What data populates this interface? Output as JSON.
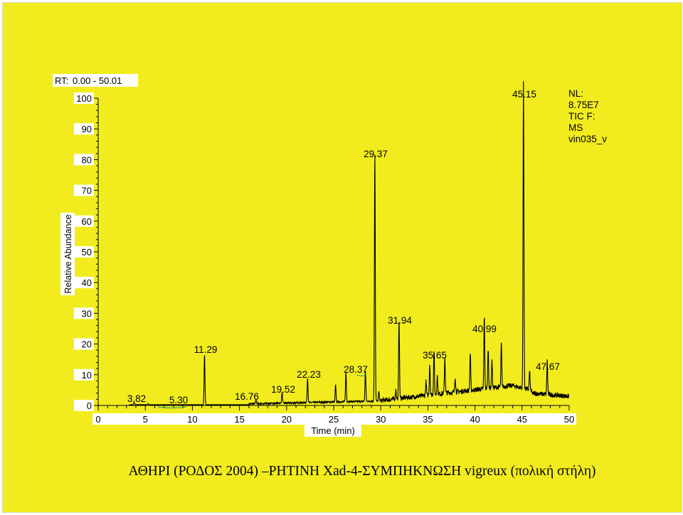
{
  "chart_data": {
    "type": "line",
    "rt_label": "RT:",
    "rt_range": "0.00 - 50.01",
    "ylabel": "Relative Abundance",
    "xlabel": "Time (min)",
    "xlim": [
      0,
      50
    ],
    "ylim": [
      0,
      100
    ],
    "x_ticks": [
      "0",
      "5",
      "10",
      "15",
      "20",
      "25",
      "30",
      "35",
      "40",
      "45",
      "50"
    ],
    "y_ticks": [
      "0",
      "10",
      "20",
      "30",
      "40",
      "50",
      "60",
      "70",
      "80",
      "90",
      "100"
    ],
    "info_lines": [
      "NL:",
      "8.75E7",
      "TIC F:",
      "MS",
      "vin035_v"
    ],
    "peaks": [
      {
        "rt": 3.82,
        "height": 0.8,
        "label": "3.82"
      },
      {
        "rt": 5.3,
        "height": 0.4,
        "label": "5.30"
      },
      {
        "rt": 11.29,
        "height": 16.5,
        "label": "11.29"
      },
      {
        "rt": 16.76,
        "height": 1.2,
        "label": "16.76"
      },
      {
        "rt": 19.52,
        "height": 3.5,
        "label": "19.52"
      },
      {
        "rt": 22.23,
        "height": 8.0,
        "label": "22.23"
      },
      {
        "rt": 28.37,
        "height": 10.0,
        "label": "28.37"
      },
      {
        "rt": 29.37,
        "height": 80.5,
        "label": "29.37"
      },
      {
        "rt": 31.94,
        "height": 26.0,
        "label": "31.94"
      },
      {
        "rt": 35.65,
        "height": 14.5,
        "label": "35.65"
      },
      {
        "rt": 40.99,
        "height": 23.5,
        "label": "40.99"
      },
      {
        "rt": 45.15,
        "height": 100,
        "label": "45.15"
      },
      {
        "rt": 47.67,
        "height": 11.0,
        "label": "47.67"
      }
    ],
    "minor_peaks": [
      {
        "rt": 25.2,
        "height": 5.5
      },
      {
        "rt": 26.3,
        "height": 9.5
      },
      {
        "rt": 29.8,
        "height": 3.0
      },
      {
        "rt": 31.6,
        "height": 3.0
      },
      {
        "rt": 34.8,
        "height": 4.5
      },
      {
        "rt": 35.2,
        "height": 10.0
      },
      {
        "rt": 36.0,
        "height": 6.0
      },
      {
        "rt": 36.8,
        "height": 11.5
      },
      {
        "rt": 37.9,
        "height": 5.0
      },
      {
        "rt": 39.5,
        "height": 12.0
      },
      {
        "rt": 41.4,
        "height": 13.0
      },
      {
        "rt": 41.8,
        "height": 9.0
      },
      {
        "rt": 42.8,
        "height": 14.0
      },
      {
        "rt": 45.8,
        "height": 6.0
      }
    ]
  },
  "caption": "ΑΘΗΡΙ (ΡΟΔΟΣ 2004) –ΡΗΤΙΝΗ Xad-4-ΣΥΜΠΗΚΝΩΣΗ vigreux (πολική στήλη)",
  "colors": {
    "background": "#f2ec1e",
    "trace": "#000000",
    "label_box": "#ffffff"
  }
}
